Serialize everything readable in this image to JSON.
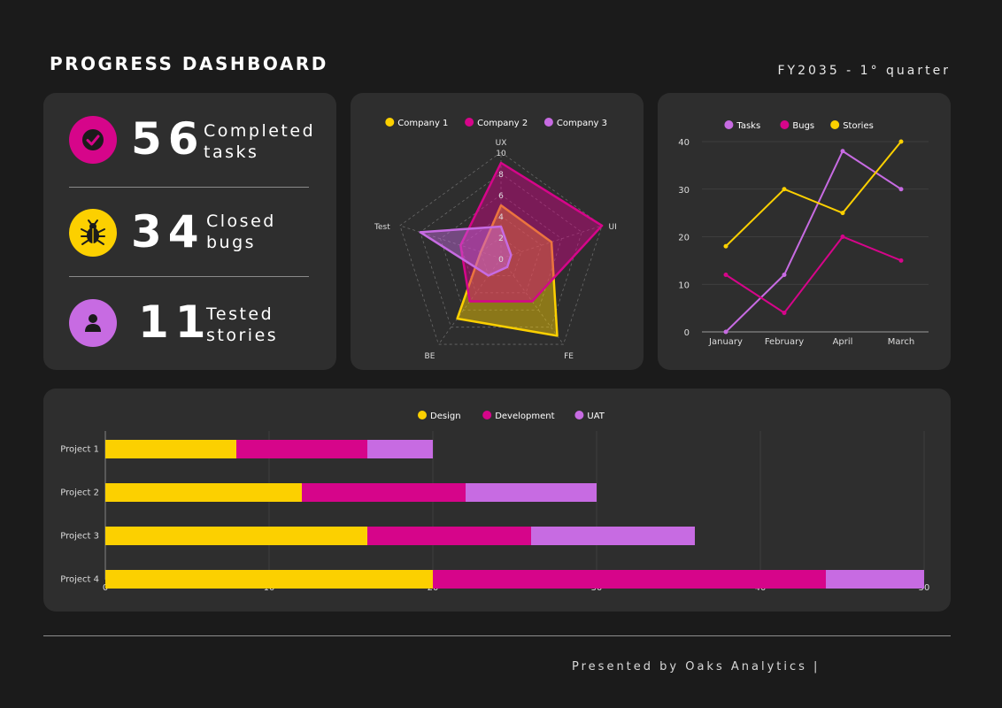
{
  "header": {
    "title": "PROGRESS DASHBOARD",
    "period": "FY2035 - 1° quarter"
  },
  "kpis": [
    {
      "value": "56",
      "label_line1": "Completed",
      "label_line2": "tasks",
      "icon": "check-circle-icon",
      "color": "#d6058a"
    },
    {
      "value": "34",
      "label_line1": "Closed",
      "label_line2": "bugs",
      "icon": "bug-icon",
      "color": "#fcd000"
    },
    {
      "value": "11",
      "label_line1": "Tested",
      "label_line2": "stories",
      "icon": "person-icon",
      "color": "#c76be2"
    }
  ],
  "colors": {
    "yellow": "#fcd000",
    "magenta": "#d6058a",
    "violet": "#c76be2",
    "card": "#2e2e2e",
    "background": "#1b1b1b"
  },
  "chart_data": [
    {
      "type": "radar",
      "axes": [
        "UX",
        "UI",
        "FE",
        "BE",
        "Test"
      ],
      "rlim": [
        0,
        10
      ],
      "ticks": [
        0,
        2,
        4,
        6,
        8,
        10
      ],
      "legend_position": "top",
      "series": [
        {
          "name": "Company 1",
          "color": "#fcd000",
          "values": [
            5,
            5,
            9,
            7,
            2
          ]
        },
        {
          "name": "Company 2",
          "color": "#d6058a",
          "values": [
            9,
            10,
            5,
            5,
            4
          ]
        },
        {
          "name": "Company 3",
          "color": "#c76be2",
          "values": [
            3,
            1,
            1,
            2,
            8
          ]
        }
      ]
    },
    {
      "type": "line",
      "categories": [
        "January",
        "February",
        "April",
        "March"
      ],
      "ylim": [
        0,
        40
      ],
      "yticks": [
        0,
        10,
        20,
        30,
        40
      ],
      "grid": true,
      "legend_position": "top",
      "series": [
        {
          "name": "Tasks",
          "color": "#c76be2",
          "values": [
            0,
            12,
            38,
            30
          ]
        },
        {
          "name": "Bugs",
          "color": "#d6058a",
          "values": [
            12,
            4,
            20,
            15
          ]
        },
        {
          "name": "Stories",
          "color": "#fcd000",
          "values": [
            18,
            30,
            25,
            40
          ]
        }
      ]
    },
    {
      "type": "bar",
      "orientation": "horizontal",
      "stacked": true,
      "categories": [
        "Project 1",
        "Project 2",
        "Project 3",
        "Project 4"
      ],
      "xlim": [
        0,
        50
      ],
      "xticks": [
        0,
        10,
        20,
        30,
        40,
        50
      ],
      "grid": true,
      "legend_position": "top",
      "series": [
        {
          "name": "Design",
          "color": "#fcd000",
          "values": [
            8,
            12,
            16,
            20
          ]
        },
        {
          "name": "Development",
          "color": "#d6058a",
          "values": [
            8,
            10,
            10,
            24
          ]
        },
        {
          "name": "UAT",
          "color": "#c76be2",
          "values": [
            4,
            8,
            10,
            6
          ]
        }
      ]
    }
  ],
  "footer": {
    "text": "Presented by Oaks Analytics |"
  }
}
